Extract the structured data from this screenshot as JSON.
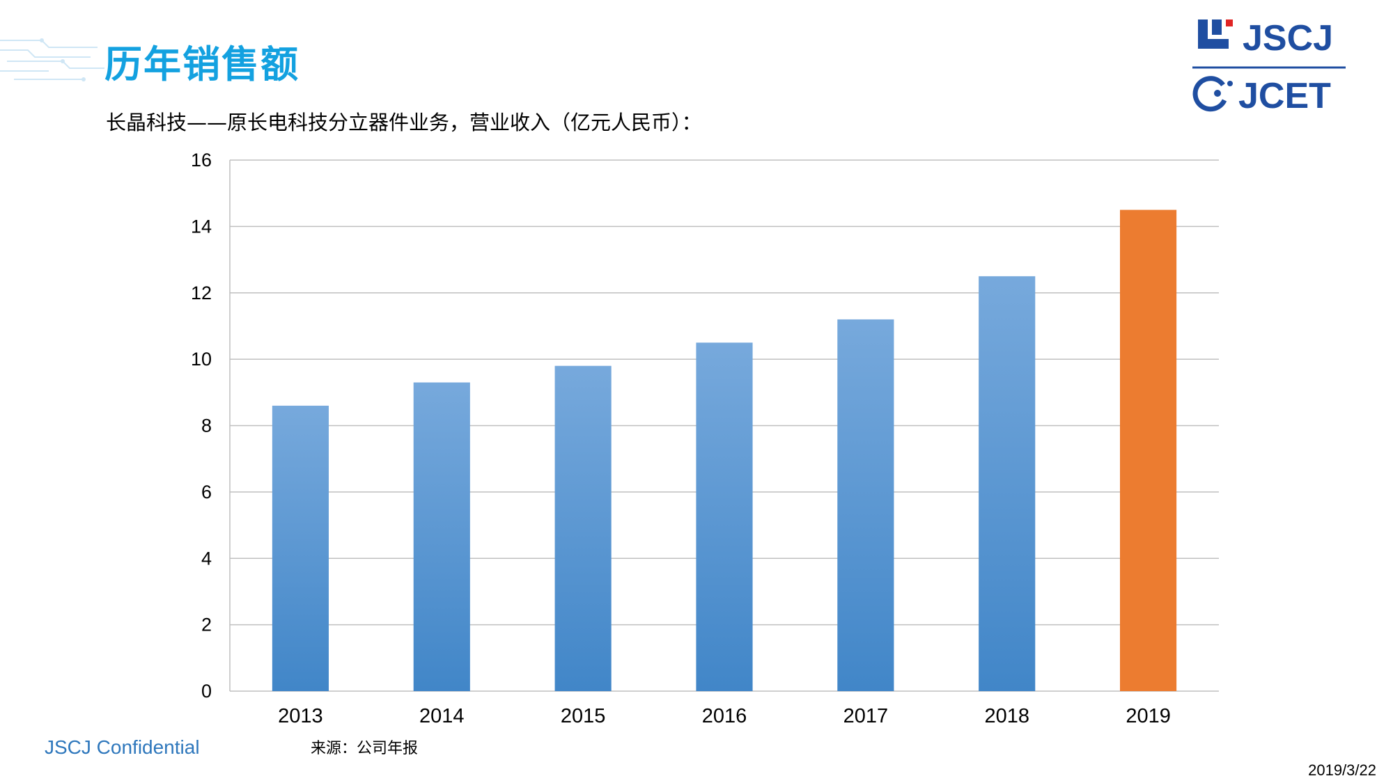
{
  "header": {
    "title": "历年销售额",
    "subtitle": "长晶科技——原长电科技分立器件业务，营业收入（亿元人民币）："
  },
  "logo": {
    "top_text": "JSCJ",
    "bottom_text": "JCET",
    "color": "#1f4ea1"
  },
  "footer": {
    "confidential": "JSCJ Confidential",
    "source": "来源：公司年报",
    "date": "2019/3/22"
  },
  "colors": {
    "title": "#13a1e0",
    "bar_gradient_top": "#77a9dc",
    "bar_gradient_bottom": "#4186c8",
    "highlight": "#ec7c30",
    "grid": "#bfbfbf"
  },
  "chart_data": {
    "type": "bar",
    "categories": [
      "2013",
      "2014",
      "2015",
      "2016",
      "2017",
      "2018",
      "2019"
    ],
    "values": [
      8.6,
      9.3,
      9.8,
      10.5,
      11.2,
      12.5,
      14.5
    ],
    "highlight_index": 6,
    "ylim": [
      0,
      16
    ],
    "yticks": [
      0,
      2,
      4,
      6,
      8,
      10,
      12,
      14,
      16
    ],
    "grid": true,
    "legend": "none"
  }
}
